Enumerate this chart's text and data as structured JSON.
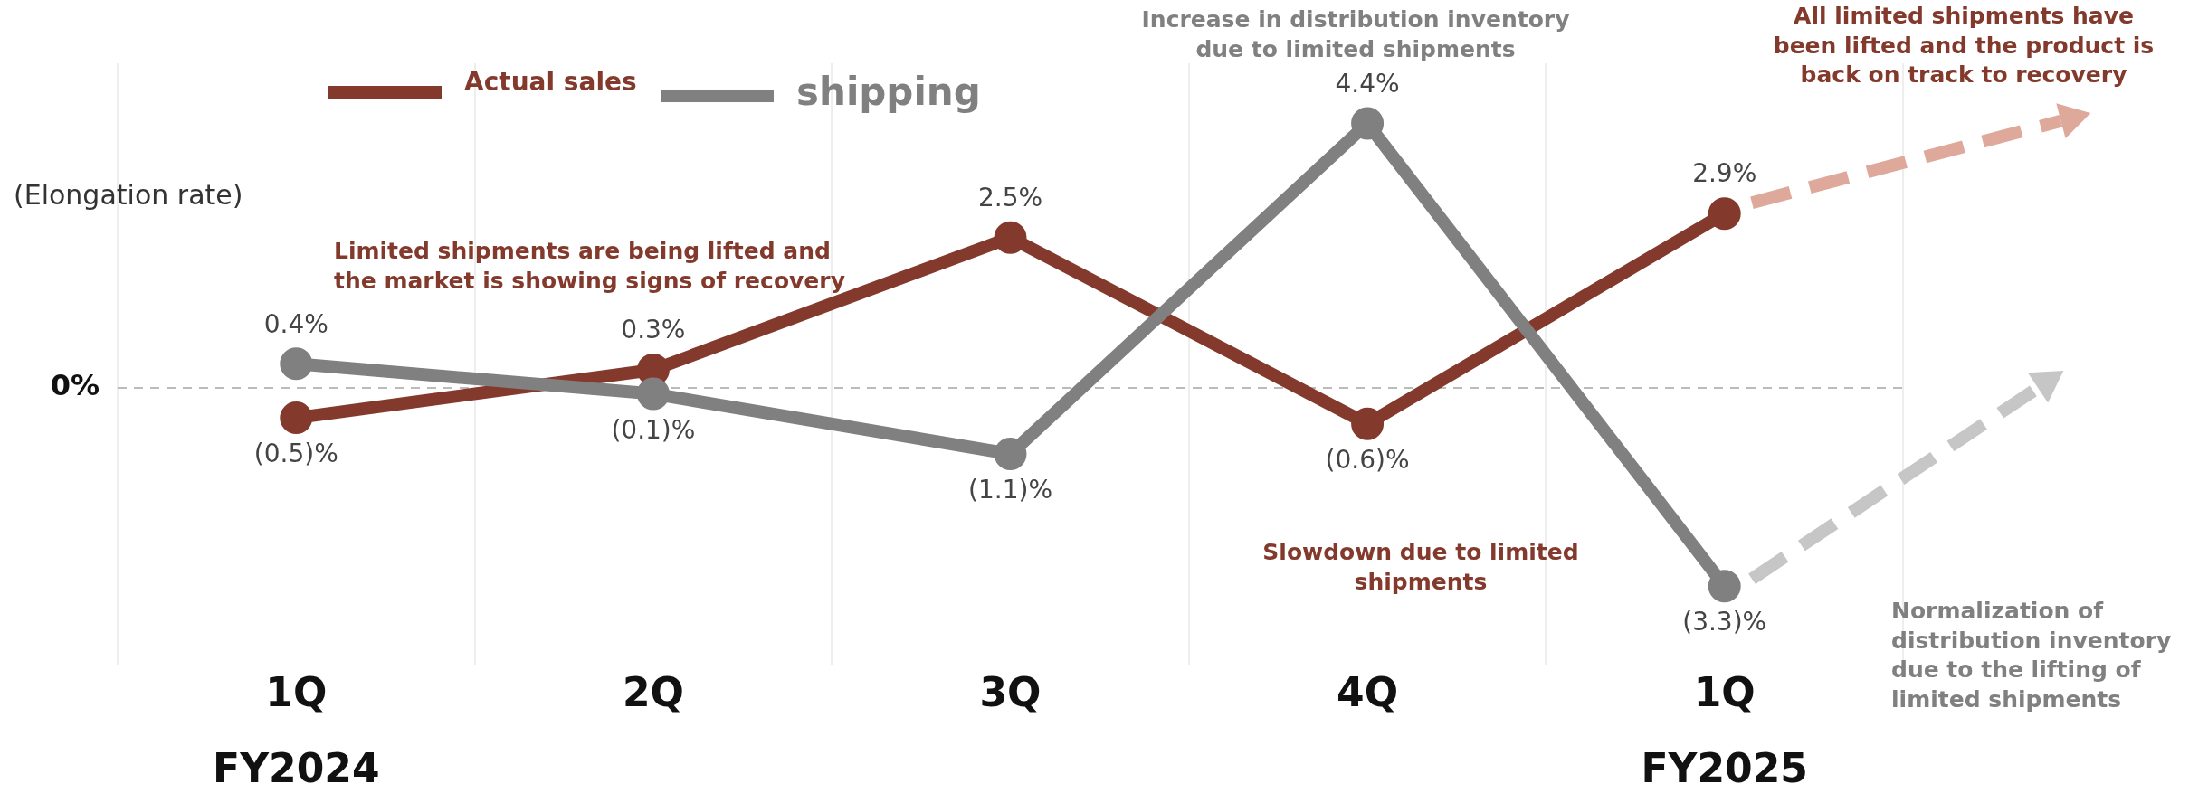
{
  "chart_data": {
    "type": "line",
    "ylabel": "(Elongation rate)",
    "categories": [
      "1Q\nFY2024",
      "2Q",
      "3Q",
      "4Q",
      "1Q\nFY2025"
    ],
    "series": [
      {
        "name": "Actual sales",
        "color": "#833a2d",
        "values": [
          -0.5,
          0.3,
          2.5,
          -0.6,
          2.9
        ],
        "value_labels": [
          "(0.5)%",
          "0.3%",
          "2.5%",
          "(0.6)%",
          "2.9%"
        ]
      },
      {
        "name": "shipping",
        "color": "#808080",
        "values": [
          0.4,
          -0.1,
          -1.1,
          4.4,
          -3.3
        ],
        "value_labels": [
          "0.4%",
          "(0.1)%",
          "(1.1)%",
          "4.4%",
          "(3.3)%"
        ]
      }
    ],
    "ylim": [
      -4.6,
      5.4
    ],
    "ref_lines": [
      {
        "axis": "y",
        "value": 0,
        "label": "0%",
        "color": "#bbbbbb",
        "line_style": "dashed"
      }
    ],
    "grid": "x",
    "legend": "top left",
    "marker": "circle",
    "line_style": "solid",
    "annotations": [
      "Limited shipments are being lifted and the market is showing signs of recovery",
      "Increase in distribution inventory due to limited shipments",
      "All limited shipments have been lifted and the product is back on track to recovery",
      "Slowdown due to limited shipments",
      "Normalization of distribution inventory due to the lifting of limited shipments"
    ]
  }
}
